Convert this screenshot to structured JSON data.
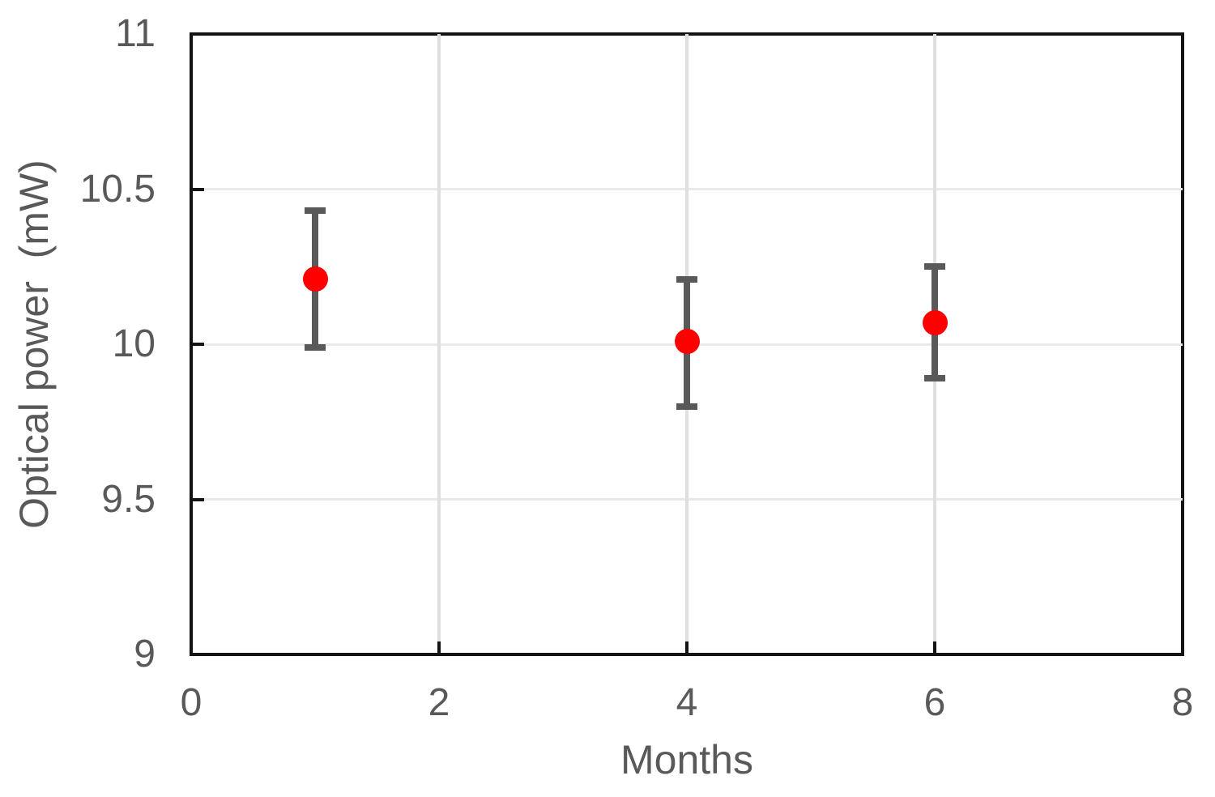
{
  "colors": {
    "marker": "#ff0000",
    "error_bar": "#595959",
    "axis_text": "#595959",
    "plot_border": "#141414",
    "gridline": "#e6e6e6",
    "background": "#ffffff"
  },
  "chart_data": {
    "type": "scatter",
    "title": "",
    "xlabel": "Months",
    "ylabel": "Optical power  (mW)",
    "xlim": [
      0,
      8
    ],
    "ylim": [
      9,
      11
    ],
    "xticks": [
      0,
      2,
      4,
      6,
      8
    ],
    "yticks": [
      9,
      9.5,
      10,
      10.5,
      11
    ],
    "grid": true,
    "legend": false,
    "series": [
      {
        "name": "Optical power",
        "marker": "circle",
        "marker_color": "#ff0000",
        "error_color": "#595959",
        "points": [
          {
            "x": 1,
            "y": 10.21,
            "y_upper": 10.43,
            "y_lower": 9.99
          },
          {
            "x": 4,
            "y": 10.01,
            "y_upper": 10.21,
            "y_lower": 9.8
          },
          {
            "x": 6,
            "y": 10.07,
            "y_upper": 10.25,
            "y_lower": 9.89
          }
        ]
      }
    ]
  }
}
